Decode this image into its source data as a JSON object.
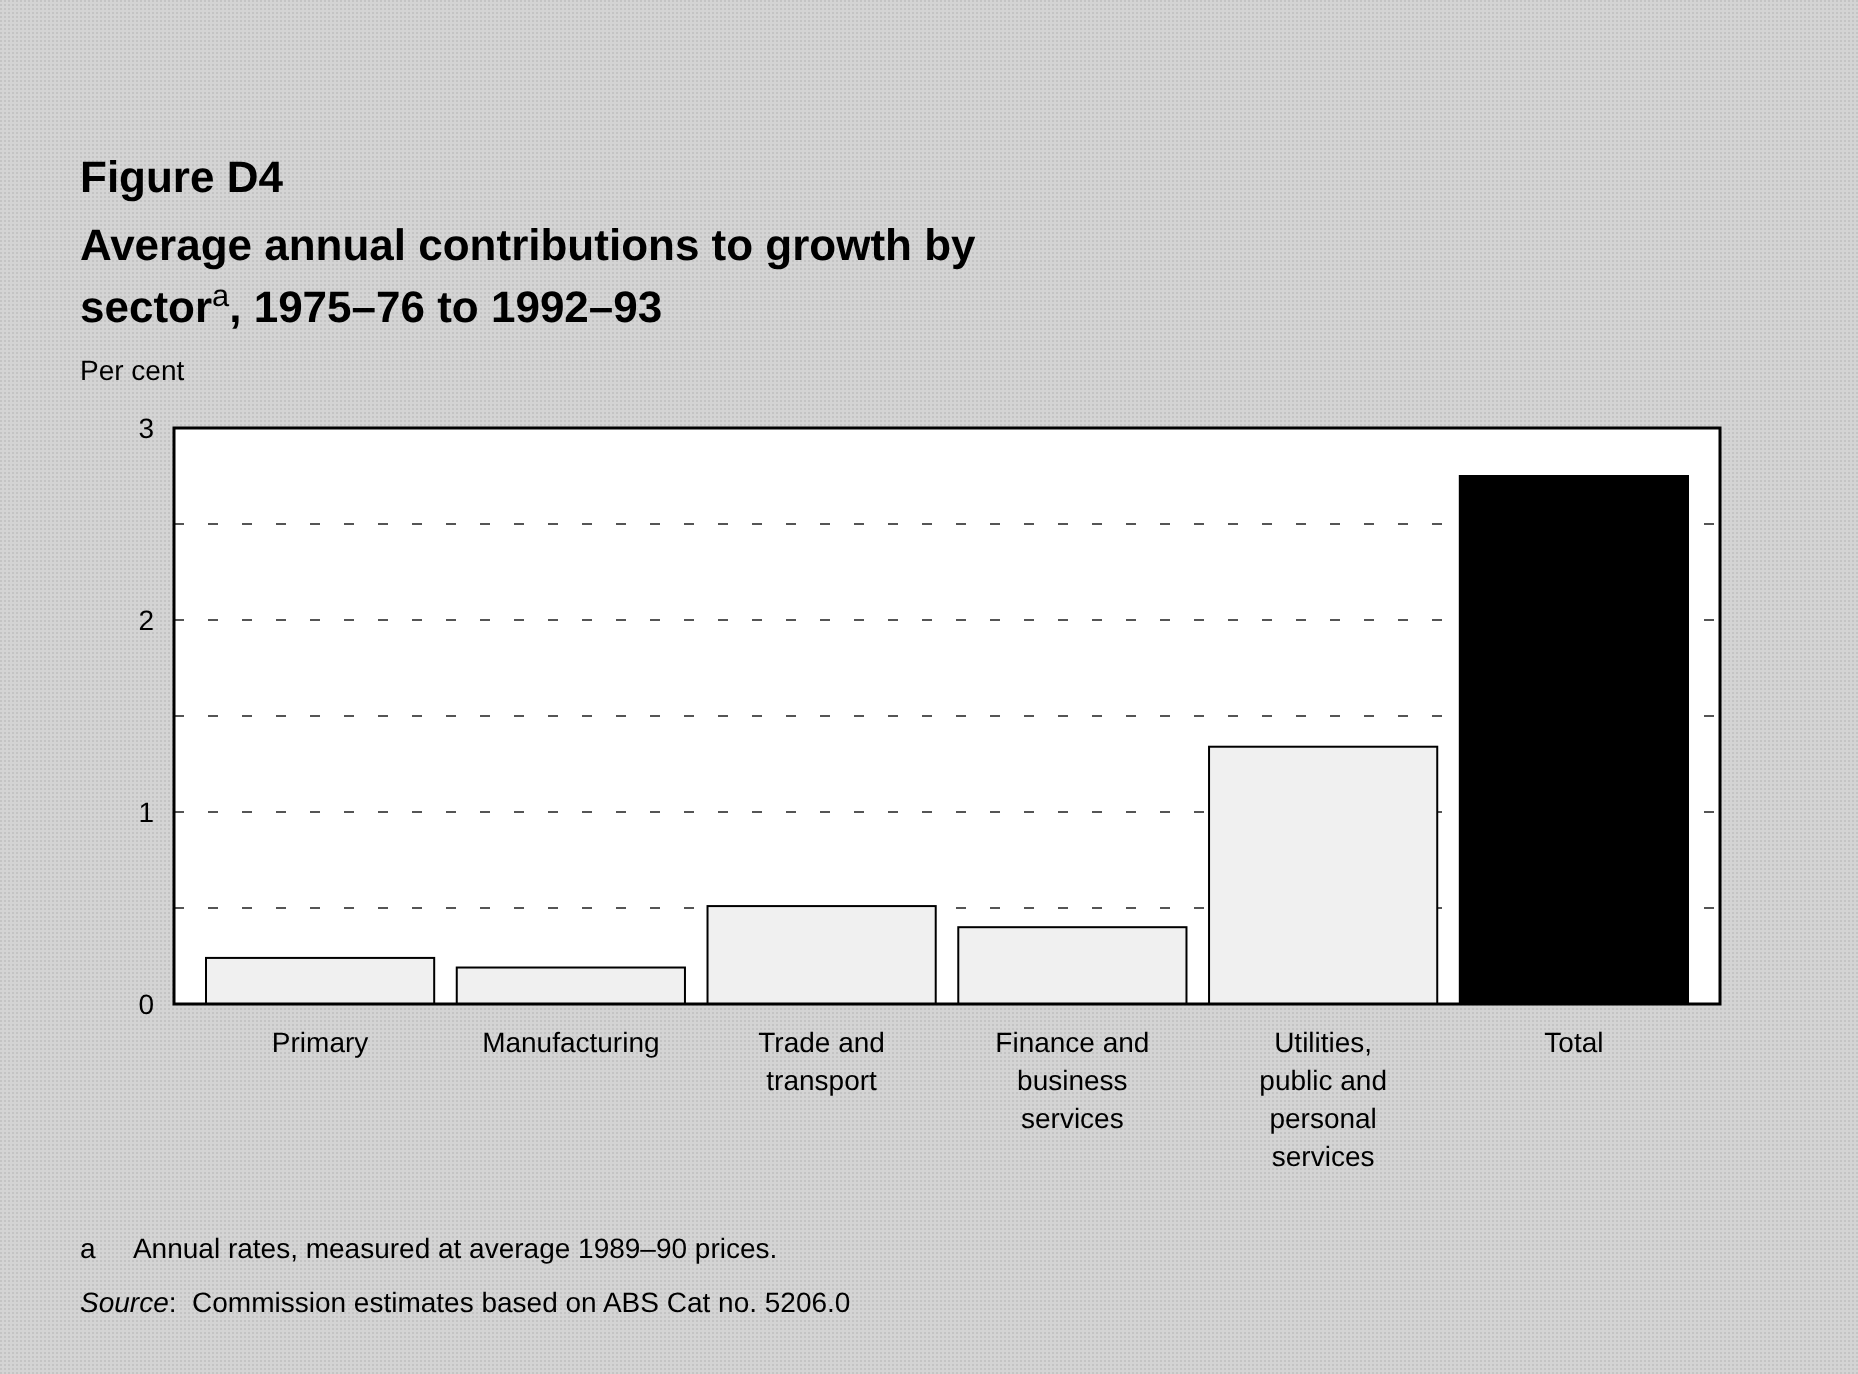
{
  "chart_data": {
    "type": "bar",
    "title": "Figure D4",
    "subtitle": "Average annual contributions to growth by sector$^{a}$, 1975–76 to 1992–93",
    "ylabel": "Per cent",
    "categories": [
      "Primary",
      "Manufacturing",
      "Trade and transport",
      "Finance and business services",
      "Utilities, public and personal services",
      "Total"
    ],
    "values": [
      0.24,
      0.19,
      0.51,
      0.4,
      1.34,
      2.75
    ],
    "colors": [
      "#f0f0f0",
      "#f0f0f0",
      "#f0f0f0",
      "#f0f0f0",
      "#f0f0f0",
      "#000000"
    ],
    "ylim": [
      0,
      3
    ],
    "yticks": [
      0,
      {
        "value": 0.5,
        "label": null
      },
      1,
      {
        "value": 1.5,
        "label": null
      },
      2,
      {
        "value": 2.5,
        "label": null
      },
      3
    ],
    "grid": "y",
    "annotations": [
      "a     Annual rates, measured at average 1989–90 prices.",
      "Source:  Commission estimates based on ABS Cat no. 5206.0"
    ]
  }
}
